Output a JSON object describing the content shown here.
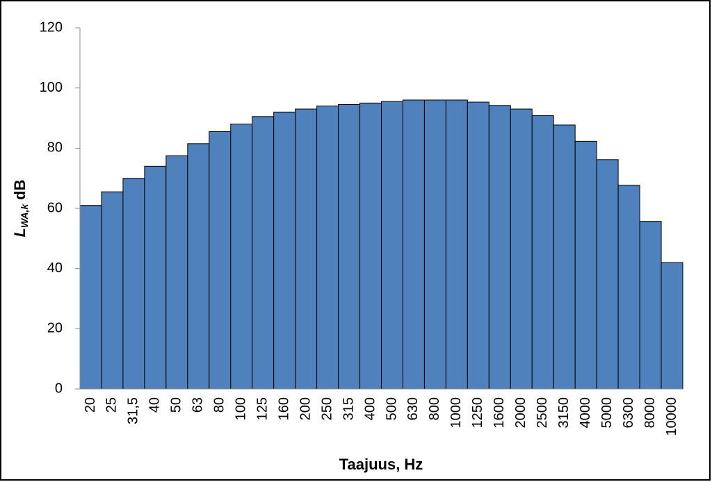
{
  "chart_data": {
    "type": "bar",
    "ylabel_main": "L",
    "ylabel_sub": "WA,k",
    "ylabel_suffix": "dB",
    "xlabel": "Taajuus, Hz",
    "categories": [
      "20",
      "25",
      "31,5",
      "40",
      "50",
      "63",
      "80",
      "100",
      "125",
      "160",
      "200",
      "250",
      "315",
      "400",
      "500",
      "630",
      "800",
      "1000",
      "1250",
      "1600",
      "2000",
      "2500",
      "3150",
      "4000",
      "5000",
      "6300",
      "8000",
      "10000"
    ],
    "values": [
      61,
      65.5,
      70,
      74,
      77.5,
      81.5,
      85.5,
      88,
      90.5,
      92,
      93,
      94,
      94.5,
      95,
      95.5,
      96,
      96,
      96,
      95.3,
      94.2,
      93,
      90.8,
      87.7,
      82.3,
      76.2,
      67.7,
      55.7,
      42
    ],
    "color": "#4f81bd",
    "ylim": [
      0,
      120
    ],
    "yticks": [
      0,
      20,
      40,
      60,
      80,
      100,
      120
    ],
    "grid": false
  }
}
